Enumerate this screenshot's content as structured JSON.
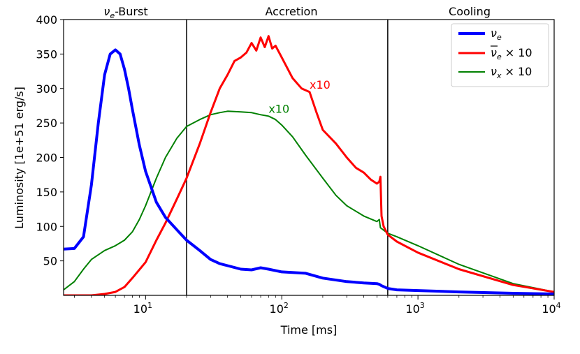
{
  "chart_data": {
    "type": "line",
    "title": "",
    "xlabel": "Time [ms]",
    "ylabel": "Luminosity [1e+51 erg/s]",
    "xscale": "log",
    "xlim": [
      2.5,
      10000
    ],
    "ylim": [
      0,
      400
    ],
    "grid": false,
    "legend_position": "top-right",
    "xticks": [
      {
        "value": 10,
        "base": "10",
        "exp": "1"
      },
      {
        "value": 100,
        "base": "10",
        "exp": "2"
      },
      {
        "value": 1000,
        "base": "10",
        "exp": "3"
      },
      {
        "value": 10000,
        "base": "10",
        "exp": "4"
      }
    ],
    "yticks": [
      "50",
      "100",
      "150",
      "200",
      "250",
      "300",
      "350",
      "400"
    ],
    "phases": [
      {
        "label": "-Burst",
        "symbol": "ν",
        "sub": "e",
        "boundary": 20
      },
      {
        "label": "Accretion",
        "boundary": 600
      },
      {
        "label": "Cooling"
      }
    ],
    "series": [
      {
        "name": "ν_e",
        "legend": {
          "sym": "ν",
          "sub": "e",
          "bar": false,
          "suffix": ""
        },
        "color": "#0000ff",
        "x": [
          2.5,
          3.0,
          3.5,
          4.0,
          4.5,
          5.0,
          5.5,
          6.0,
          6.5,
          7.0,
          7.5,
          8.0,
          9.0,
          10.0,
          12.0,
          14.0,
          17.0,
          20.0,
          25.0,
          30.0,
          35.0,
          40.0,
          50.0,
          60.0,
          70.0,
          80.0,
          100.0,
          150.0,
          200.0,
          300.0,
          400.0,
          500.0,
          520.0,
          540.0,
          600.0,
          700.0,
          1000.0,
          2000.0,
          5000.0,
          10000.0
        ],
        "y": [
          67,
          68,
          85,
          160,
          250,
          320,
          350,
          356,
          350,
          328,
          300,
          270,
          218,
          180,
          135,
          113,
          95,
          80,
          65,
          52,
          46,
          43,
          38,
          37,
          40,
          38,
          34,
          32,
          25,
          20,
          18,
          17,
          16,
          14,
          10,
          8,
          7,
          5,
          3,
          2
        ]
      },
      {
        "name": "ν̄_e × 10",
        "legend": {
          "sym": "ν",
          "sub": "e",
          "bar": true,
          "suffix": "× 10"
        },
        "color": "#ff0000",
        "x": [
          2.5,
          4.0,
          5.0,
          6.0,
          7.0,
          8.0,
          10.0,
          12.0,
          14.0,
          17.0,
          20.0,
          25.0,
          30.0,
          35.0,
          40.0,
          45.0,
          50.0,
          55.0,
          60.0,
          65.0,
          70.0,
          75.0,
          80.0,
          85.0,
          90.0,
          100.0,
          120.0,
          140.0,
          160.0,
          180.0,
          200.0,
          250.0,
          300.0,
          350.0,
          400.0,
          450.0,
          500.0,
          520.0,
          530.0,
          540.0,
          560.0,
          600.0,
          700.0,
          1000.0,
          2000.0,
          5000.0,
          10000.0
        ],
        "y": [
          0,
          0,
          2,
          5,
          12,
          25,
          48,
          80,
          105,
          140,
          170,
          220,
          265,
          300,
          320,
          340,
          345,
          352,
          366,
          355,
          374,
          360,
          376,
          358,
          362,
          345,
          315,
          300,
          295,
          265,
          240,
          220,
          200,
          185,
          178,
          168,
          162,
          165,
          172,
          115,
          100,
          88,
          78,
          62,
          38,
          15,
          5
        ]
      },
      {
        "name": "ν_x × 10",
        "legend": {
          "sym": "ν",
          "sub": "x",
          "bar": false,
          "suffix": "× 10"
        },
        "color": "#008000",
        "x": [
          2.5,
          3.0,
          3.5,
          4.0,
          5.0,
          6.0,
          7.0,
          8.0,
          9.0,
          10.0,
          12.0,
          14.0,
          17.0,
          20.0,
          25.0,
          30.0,
          35.0,
          40.0,
          50.0,
          60.0,
          70.0,
          80.0,
          90.0,
          100.0,
          120.0,
          150.0,
          200.0,
          250.0,
          300.0,
          400.0,
          500.0,
          520.0,
          530.0,
          600.0,
          700.0,
          1000.0,
          2000.0,
          5000.0,
          10000.0
        ],
        "y": [
          8,
          20,
          38,
          52,
          65,
          72,
          80,
          92,
          110,
          130,
          170,
          200,
          228,
          245,
          255,
          262,
          265,
          267,
          266,
          265,
          262,
          260,
          255,
          247,
          230,
          203,
          170,
          145,
          130,
          115,
          107,
          110,
          98,
          90,
          85,
          72,
          45,
          17,
          5
        ]
      }
    ],
    "annotations": [
      {
        "text": "x10",
        "color": "#ff0000",
        "x": 160,
        "y": 300
      },
      {
        "text": "x10",
        "color": "#008000",
        "x": 80,
        "y": 265
      }
    ]
  }
}
